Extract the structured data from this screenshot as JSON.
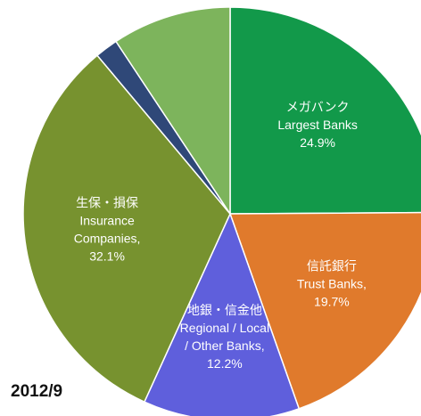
{
  "chart_data": {
    "type": "pie",
    "categories": [
      [
        "メガバンク",
        "Largest Banks"
      ],
      [
        "信託銀行",
        "Trust Banks,"
      ],
      [
        "地銀・信金他",
        "Regional / Local",
        "/ Other Banks,"
      ],
      [
        "生保・損保",
        "Insurance",
        "Companies,"
      ],
      null,
      null
    ],
    "values": [
      24.9,
      19.7,
      12.2,
      32.1,
      1.8,
      9.3
    ],
    "value_labels": [
      "24.9%",
      "19.7%",
      "12.2%",
      "32.1%",
      null,
      null
    ],
    "colors": [
      "#12994a",
      "#e07a2c",
      "#5f5fdc",
      "#77922f",
      "#2f4878",
      "#7db45c"
    ],
    "annotation": "2012/9"
  }
}
